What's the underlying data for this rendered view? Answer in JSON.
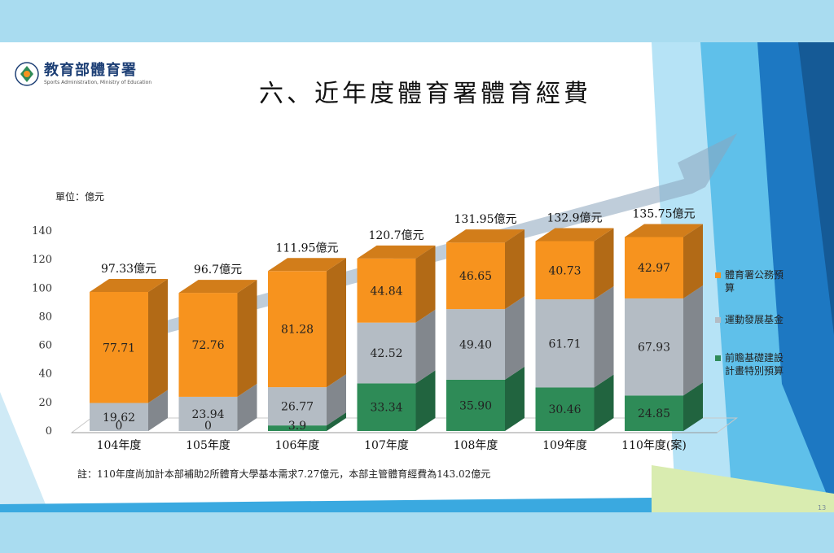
{
  "logo": {
    "name_cn": "教育部體育署",
    "name_en": "Sports Administration, Ministry of Education"
  },
  "title": "六、近年度體育署體育經費",
  "unit_label": "單位：億元",
  "footnote": "註：110年度尚加計本部補助2所體育大學基本需求7.27億元，本部主管體育經費為143.02億元",
  "page_number": "13",
  "colors": {
    "orange": "#f7931e",
    "gray": "#b4bcc4",
    "green": "#2e8b57",
    "accent_blue": "#1f9fd6"
  },
  "chart_data": {
    "type": "bar",
    "stacked": true,
    "categories": [
      "104年度",
      "105年度",
      "106年度",
      "107年度",
      "108年度",
      "109年度",
      "110年度(案)"
    ],
    "totals": [
      "97.33億元",
      "96.7億元",
      "111.95億元",
      "120.7億元",
      "131.95億元",
      "132.9億元",
      "135.75億元"
    ],
    "series": [
      {
        "name": "前瞻基礎建設計畫特別預算",
        "color": "#2e8b57",
        "values": [
          0,
          0,
          3.9,
          33.34,
          35.9,
          30.46,
          24.85
        ],
        "labels": [
          "0",
          "0",
          "3.9",
          "33.34",
          "35.90",
          "30.46",
          "24.85"
        ]
      },
      {
        "name": "運動發展基金",
        "color": "#b4bcc4",
        "values": [
          19.62,
          23.94,
          26.77,
          42.52,
          49.4,
          61.71,
          67.93
        ],
        "labels": [
          "19.62",
          "23.94",
          "26.77",
          "42.52",
          "49.40",
          "61.71",
          "67.93"
        ]
      },
      {
        "name": "體育署公務預算",
        "color": "#f7931e",
        "values": [
          77.71,
          72.76,
          81.28,
          44.84,
          46.65,
          40.73,
          42.97
        ],
        "labels": [
          "77.71",
          "72.76",
          "81.28",
          "44.84",
          "46.65",
          "40.73",
          "42.97"
        ]
      }
    ],
    "ylim": [
      0,
      140
    ],
    "yticks": [
      "0",
      "20",
      "40",
      "60",
      "80",
      "100",
      "120",
      "140"
    ],
    "legend_position": "right",
    "legend_lines": [
      {
        "series": 2,
        "lines": [
          "體育署公務預",
          "算"
        ]
      },
      {
        "series": 1,
        "lines": [
          "運動發展基金"
        ]
      },
      {
        "series": 0,
        "lines": [
          "前瞻基礎建設",
          "計畫特別預算"
        ]
      }
    ]
  }
}
